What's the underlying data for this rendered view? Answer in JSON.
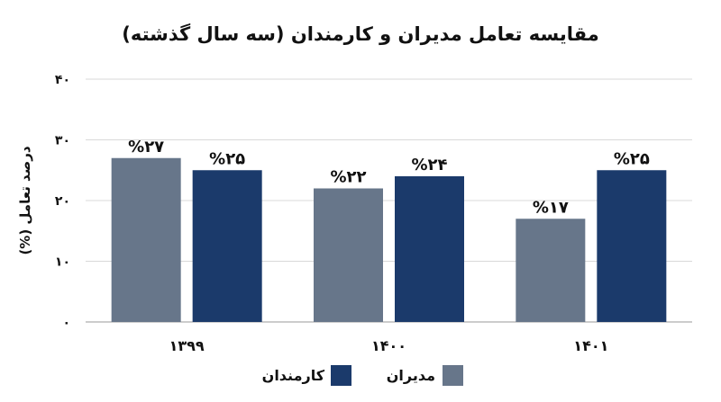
{
  "chart_data": {
    "type": "bar",
    "title": "مقایسه تعامل مدیران و کارمندان (سه سال گذشته)",
    "ylabel": "درصد تعامل (%)",
    "xlabel": "",
    "categories": [
      "۱۳۹۹",
      "۱۴۰۰",
      "۱۴۰۱"
    ],
    "series": [
      {
        "name": "مدیران",
        "color": "#67768a",
        "values": [
          27,
          22,
          17
        ],
        "labels": [
          "%۲۷",
          "%۲۲",
          "%۱۷"
        ]
      },
      {
        "name": "کارمندان",
        "color": "#1b3a6b",
        "values": [
          25,
          24,
          25
        ],
        "labels": [
          "%۲۵",
          "%۲۴",
          "%۲۵"
        ]
      }
    ],
    "ylim": [
      0,
      40
    ],
    "yticks": [
      0,
      10,
      20,
      30,
      40
    ],
    "ytick_labels": [
      "۰",
      "۱۰",
      "۲۰",
      "۳۰",
      "۴۰"
    ],
    "grid": true,
    "legend_position": "bottom"
  }
}
